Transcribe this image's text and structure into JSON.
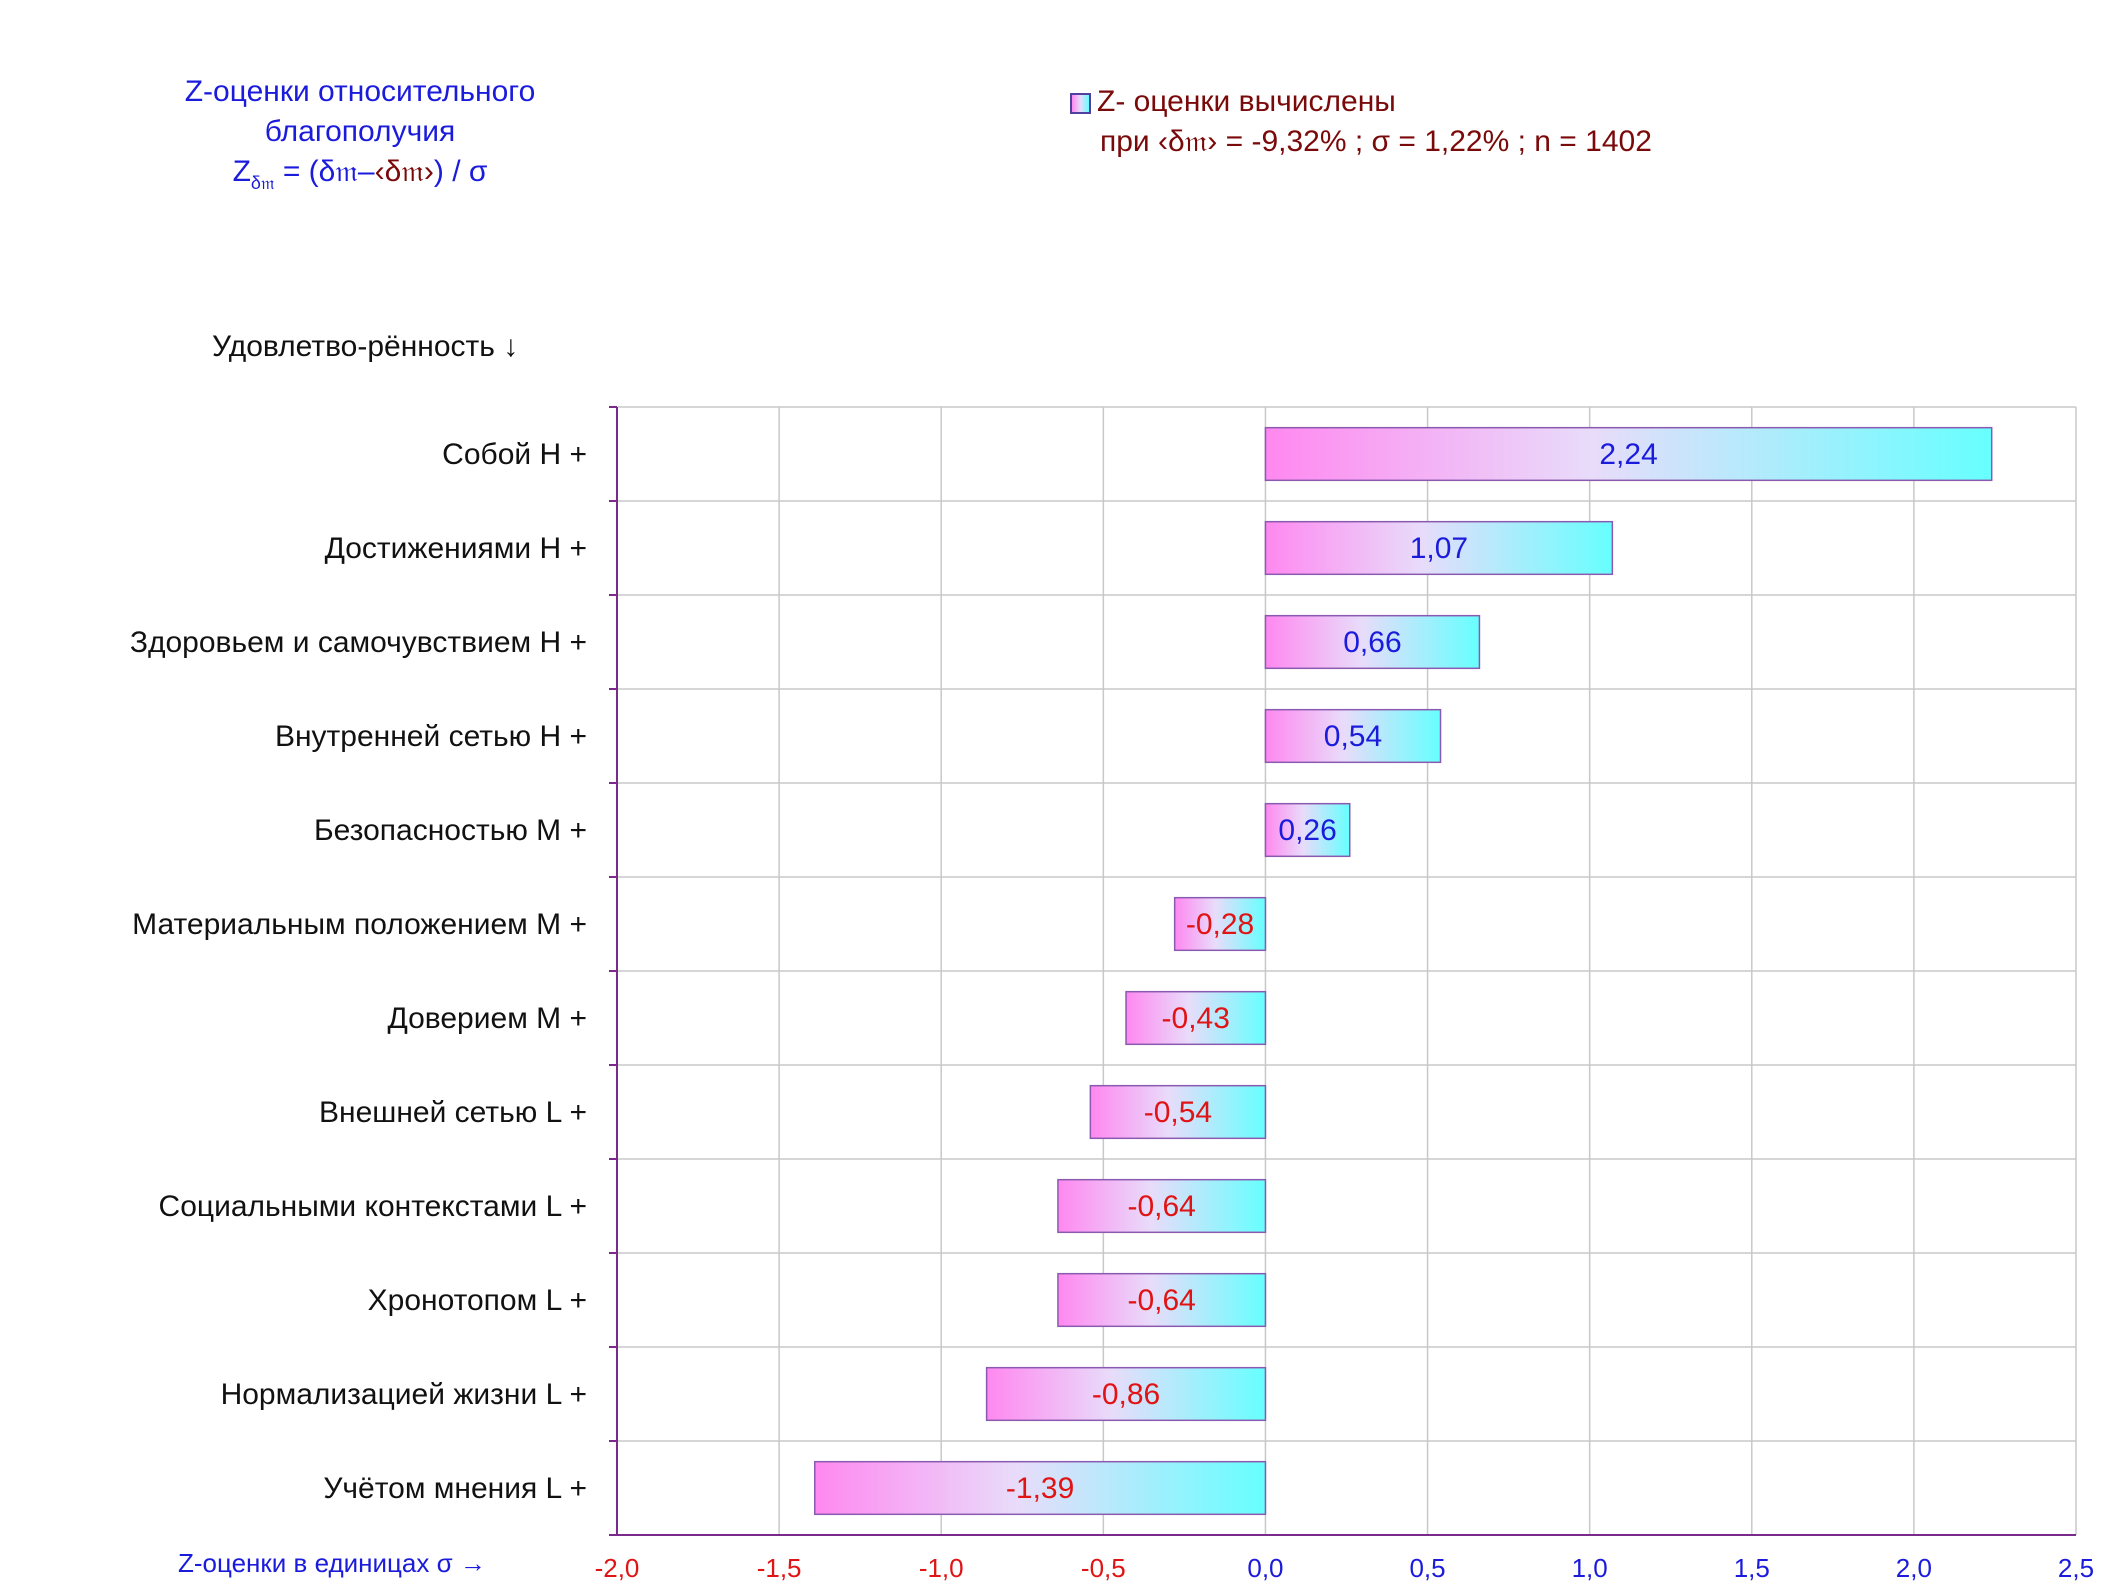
{
  "header": {
    "title_line1": "Z-оценки  относительного",
    "title_line2": "благополучия",
    "formula_z": "Z",
    "formula_sub": "δ𝔪",
    "formula_eq": "= (δ𝔪–",
    "formula_mean": "‹δ𝔪›",
    "formula_end": ") / σ"
  },
  "note": {
    "legend_label": "Z- оценки вычислены",
    "params": "при ‹δ𝔪› = -9,32% ; σ = 1,22% ; n = 1402"
  },
  "y_header": "Удовлетво-рённость ↓",
  "x_caption": "Z-оценки в единицах σ →",
  "colors": {
    "positive_label": "#1b1bdc",
    "negative_label": "#e01414",
    "bar_left": "#ff88f0",
    "bar_mid": "#e8dcfa",
    "bar_right": "#66ffff",
    "grid": "#c8c8c8",
    "axis": "#7a2a8a"
  },
  "chart_data": {
    "type": "bar",
    "orientation": "horizontal",
    "categories": [
      "Собой  H +",
      "Достижениями  H +",
      "Здоровьем и самочувствием  H +",
      "Внутренней сетью  H +",
      "Безопасностью  M +",
      "Материальным положением  M +",
      "Доверием  M +",
      "Внешней сетью  L +",
      "Социальными контекстами  L +",
      "Хронотопом  L +",
      "Нормализацией жизни  L +",
      "Учётом мнения  L +"
    ],
    "values": [
      2.24,
      1.07,
      0.66,
      0.54,
      0.26,
      -0.28,
      -0.43,
      -0.54,
      -0.64,
      -0.64,
      -0.86,
      -1.39
    ],
    "value_labels": [
      "2,24",
      "1,07",
      "0,66",
      "0,54",
      "0,26",
      "-0,28",
      "-0,43",
      "-0,54",
      "-0,64",
      "-0,64",
      "-0,86",
      "-1,39"
    ],
    "xlim": [
      -2.0,
      2.5
    ],
    "x_ticks": [
      -2.0,
      -1.5,
      -1.0,
      -0.5,
      0.0,
      0.5,
      1.0,
      1.5,
      2.0,
      2.5
    ],
    "x_tick_labels": [
      "-2,0",
      "-1,5",
      "-1,0",
      "-0,5",
      "0,0",
      "0,5",
      "1,0",
      "1,5",
      "2,0",
      "2,5"
    ],
    "grid": true
  }
}
